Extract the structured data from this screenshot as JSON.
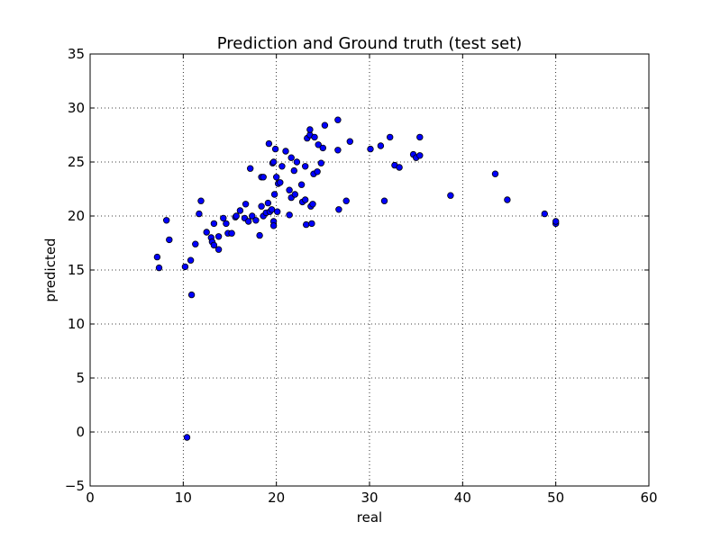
{
  "chart_data": {
    "type": "scatter",
    "title": "Prediction and Ground truth (test set)",
    "xlabel": "real",
    "ylabel": "predicted",
    "xlim": [
      0,
      60
    ],
    "ylim": [
      -5,
      35
    ],
    "xticks": [
      0,
      10,
      20,
      30,
      40,
      50,
      60
    ],
    "yticks": [
      -5,
      0,
      5,
      10,
      15,
      20,
      25,
      30,
      35
    ],
    "grid": true,
    "marker_color": "#0000ff",
    "marker_edge_color": "#000000",
    "points": [
      [
        7.2,
        16.2
      ],
      [
        7.4,
        15.2
      ],
      [
        8.2,
        19.6
      ],
      [
        8.5,
        17.8
      ],
      [
        10.2,
        15.3
      ],
      [
        10.4,
        -0.5
      ],
      [
        10.8,
        15.9
      ],
      [
        10.9,
        12.7
      ],
      [
        11.3,
        17.4
      ],
      [
        11.7,
        20.2
      ],
      [
        11.9,
        21.4
      ],
      [
        12.5,
        18.5
      ],
      [
        13.0,
        18.0
      ],
      [
        13.1,
        17.6
      ],
      [
        13.3,
        17.3
      ],
      [
        13.3,
        19.3
      ],
      [
        13.8,
        18.1
      ],
      [
        13.8,
        16.9
      ],
      [
        14.3,
        19.8
      ],
      [
        14.6,
        19.3
      ],
      [
        14.8,
        18.4
      ],
      [
        15.2,
        18.4
      ],
      [
        15.6,
        19.9
      ],
      [
        15.7,
        20.0
      ],
      [
        16.1,
        20.5
      ],
      [
        16.6,
        19.8
      ],
      [
        16.7,
        21.1
      ],
      [
        17.0,
        19.5
      ],
      [
        17.2,
        24.4
      ],
      [
        17.4,
        20.0
      ],
      [
        17.8,
        19.6
      ],
      [
        18.2,
        18.2
      ],
      [
        18.4,
        20.9
      ],
      [
        18.4,
        23.6
      ],
      [
        18.6,
        23.6
      ],
      [
        18.6,
        20.0
      ],
      [
        18.9,
        20.3
      ],
      [
        19.1,
        21.2
      ],
      [
        19.2,
        26.7
      ],
      [
        19.3,
        20.4
      ],
      [
        19.5,
        20.6
      ],
      [
        19.6,
        24.9
      ],
      [
        19.7,
        19.5
      ],
      [
        19.7,
        19.1
      ],
      [
        19.7,
        25.0
      ],
      [
        19.8,
        22.0
      ],
      [
        19.9,
        26.2
      ],
      [
        20.0,
        23.6
      ],
      [
        20.1,
        20.4
      ],
      [
        20.2,
        23.0
      ],
      [
        20.4,
        23.1
      ],
      [
        20.6,
        24.6
      ],
      [
        21.0,
        26.0
      ],
      [
        21.4,
        22.4
      ],
      [
        21.4,
        20.1
      ],
      [
        21.6,
        25.4
      ],
      [
        21.6,
        21.7
      ],
      [
        21.9,
        24.2
      ],
      [
        22.0,
        22.0
      ],
      [
        22.2,
        25.0
      ],
      [
        22.7,
        22.9
      ],
      [
        22.8,
        21.3
      ],
      [
        23.1,
        21.5
      ],
      [
        23.1,
        24.6
      ],
      [
        23.2,
        19.2
      ],
      [
        23.3,
        27.2
      ],
      [
        23.6,
        27.5
      ],
      [
        23.6,
        28.0
      ],
      [
        23.7,
        20.9
      ],
      [
        23.8,
        19.3
      ],
      [
        23.9,
        21.1
      ],
      [
        24.0,
        23.9
      ],
      [
        24.1,
        27.3
      ],
      [
        24.4,
        24.1
      ],
      [
        24.5,
        26.6
      ],
      [
        24.8,
        24.9
      ],
      [
        25.0,
        26.3
      ],
      [
        25.2,
        28.4
      ],
      [
        26.6,
        28.9
      ],
      [
        26.6,
        26.1
      ],
      [
        26.7,
        20.6
      ],
      [
        27.5,
        21.4
      ],
      [
        27.9,
        26.9
      ],
      [
        30.1,
        26.2
      ],
      [
        31.2,
        26.5
      ],
      [
        31.6,
        21.4
      ],
      [
        32.2,
        27.3
      ],
      [
        32.7,
        24.7
      ],
      [
        33.2,
        24.5
      ],
      [
        34.7,
        25.7
      ],
      [
        35.0,
        25.4
      ],
      [
        35.4,
        27.3
      ],
      [
        35.4,
        25.6
      ],
      [
        38.7,
        21.9
      ],
      [
        43.5,
        23.9
      ],
      [
        44.8,
        21.5
      ],
      [
        48.8,
        20.2
      ],
      [
        50.0,
        19.3
      ],
      [
        50.0,
        19.5
      ]
    ]
  }
}
